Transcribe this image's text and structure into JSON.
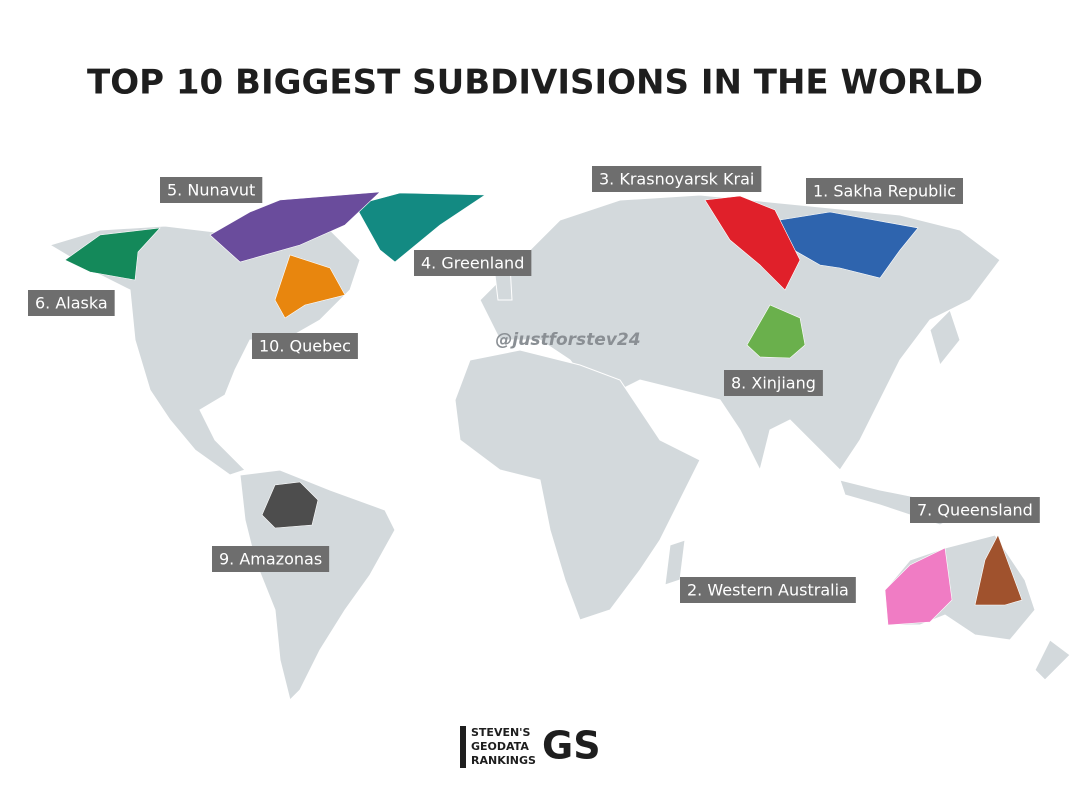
{
  "title": "TOP 10 BIGGEST SUBDIVISIONS IN THE WORLD",
  "regions": [
    {
      "label": "1. Sakha Republic",
      "color": "#2e64ae"
    },
    {
      "label": "2. Western Australia",
      "color": "#f07cc4"
    },
    {
      "label": "3. Krasnoyarsk Krai",
      "color": "#e0202a"
    },
    {
      "label": "4. Greenland",
      "color": "#138a82"
    },
    {
      "label": "5. Nunavut",
      "color": "#6a4c9c"
    },
    {
      "label": "6. Alaska",
      "color": "#14895a"
    },
    {
      "label": "7. Queensland",
      "color": "#a0522d"
    },
    {
      "label": "8. Xinjiang",
      "color": "#6ab04c"
    },
    {
      "label": "9. Amazonas",
      "color": "#4d4d4d"
    },
    {
      "label": "10. Quebec",
      "color": "#e8860e"
    }
  ],
  "watermark": "@justforstev24",
  "logo": {
    "lines": [
      "STEVEN'S",
      "GEODATA",
      "RANKINGS"
    ],
    "mark": "GS"
  }
}
